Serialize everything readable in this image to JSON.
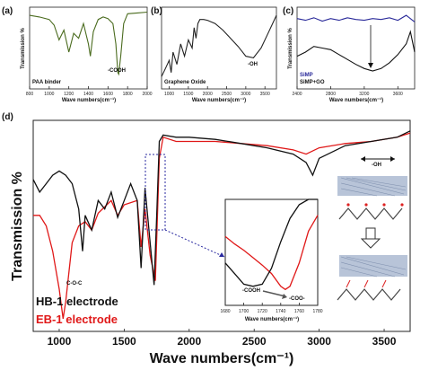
{
  "chart_data": [
    {
      "panel": "(a)",
      "type": "line",
      "xlabel": "Wave numbers(cm⁻¹)",
      "ylabel": "Transmission %",
      "xlim": [
        800,
        2000
      ],
      "xticks": [
        "800",
        "1000",
        "1200",
        "1400",
        "1600",
        "1800",
        "2000"
      ],
      "legend": "PAA binder",
      "annotations": [
        "-COOH"
      ],
      "series": [
        {
          "color": "#4a6b1e",
          "x": [
            800,
            900,
            1000,
            1050,
            1100,
            1150,
            1200,
            1250,
            1300,
            1350,
            1400,
            1420,
            1450,
            1500,
            1550,
            1600,
            1650,
            1680,
            1700,
            1710,
            1730,
            1760,
            1800,
            1900,
            2000
          ],
          "y": [
            0.9,
            0.88,
            0.85,
            0.78,
            0.6,
            0.72,
            0.45,
            0.68,
            0.62,
            0.8,
            0.55,
            0.4,
            0.7,
            0.85,
            0.88,
            0.86,
            0.8,
            0.55,
            0.2,
            0.18,
            0.4,
            0.8,
            0.92,
            0.93,
            0.94
          ]
        }
      ]
    },
    {
      "panel": "(b)",
      "type": "line",
      "xlabel": "Wave numbers(cm⁻¹)",
      "ylabel": "",
      "xlim": [
        800,
        3800
      ],
      "xticks": [
        "1000",
        "1500",
        "2000",
        "2500",
        "3000",
        "3500"
      ],
      "legend": "Graphene Oxide",
      "annotations": [
        "-OH"
      ],
      "series": [
        {
          "color": "#222222",
          "x": [
            800,
            900,
            1000,
            1050,
            1100,
            1200,
            1300,
            1400,
            1500,
            1600,
            1650,
            1700,
            1750,
            1800,
            1900,
            2000,
            2200,
            2400,
            2600,
            2800,
            3000,
            3200,
            3400,
            3600,
            3800
          ],
          "y": [
            0.15,
            0.25,
            0.35,
            0.2,
            0.45,
            0.3,
            0.55,
            0.4,
            0.6,
            0.5,
            0.75,
            0.62,
            0.8,
            0.85,
            0.85,
            0.84,
            0.8,
            0.72,
            0.62,
            0.52,
            0.4,
            0.38,
            0.5,
            0.7,
            0.9
          ]
        }
      ]
    },
    {
      "panel": "(c)",
      "type": "line",
      "xlabel": "Wave numbers(cm⁻¹)",
      "ylabel": "Transmission %",
      "xlim": [
        2400,
        3800
      ],
      "xticks": [
        "2400",
        "2800",
        "3200",
        "3600"
      ],
      "series": [
        {
          "name": "SiMP",
          "color": "#2a2a9a",
          "x": [
            2400,
            2500,
            2600,
            2700,
            2800,
            2900,
            3000,
            3100,
            3200,
            3300,
            3400,
            3500,
            3600,
            3700,
            3800
          ],
          "y": [
            0.86,
            0.84,
            0.87,
            0.83,
            0.86,
            0.84,
            0.87,
            0.85,
            0.84,
            0.86,
            0.85,
            0.87,
            0.84,
            0.9,
            0.82
          ]
        },
        {
          "name": "SiMP+GO",
          "color": "#111111",
          "x": [
            2400,
            2500,
            2600,
            2700,
            2800,
            2900,
            3000,
            3100,
            3200,
            3300,
            3400,
            3500,
            3600,
            3700,
            3750,
            3800
          ],
          "y": [
            0.4,
            0.45,
            0.52,
            0.5,
            0.48,
            0.42,
            0.36,
            0.3,
            0.25,
            0.22,
            0.25,
            0.32,
            0.42,
            0.55,
            0.7,
            0.45
          ]
        }
      ]
    },
    {
      "panel": "(d)",
      "type": "line",
      "xlabel": "Wave numbers(cm⁻¹)",
      "ylabel": "Transmission %",
      "xlim": [
        800,
        3700
      ],
      "xticks": [
        "1000",
        "1500",
        "2000",
        "2500",
        "3000",
        "3500"
      ],
      "annotations": [
        "C-O-C",
        "-OH"
      ],
      "series": [
        {
          "name": "HB-1 electrode",
          "color": "#111111",
          "x": [
            800,
            850,
            900,
            950,
            1000,
            1050,
            1100,
            1150,
            1180,
            1200,
            1250,
            1300,
            1350,
            1400,
            1450,
            1500,
            1550,
            1600,
            1630,
            1660,
            1700,
            1730,
            1750,
            1770,
            1800,
            1900,
            2000,
            2200,
            2400,
            2600,
            2800,
            2900,
            2950,
            3000,
            3200,
            3400,
            3600,
            3700
          ],
          "y": [
            0.72,
            0.66,
            0.7,
            0.74,
            0.76,
            0.74,
            0.7,
            0.58,
            0.38,
            0.55,
            0.48,
            0.62,
            0.58,
            0.66,
            0.54,
            0.62,
            0.7,
            0.62,
            0.3,
            0.68,
            0.42,
            0.22,
            0.55,
            0.9,
            0.93,
            0.92,
            0.92,
            0.91,
            0.89,
            0.87,
            0.84,
            0.8,
            0.74,
            0.82,
            0.88,
            0.9,
            0.92,
            0.95
          ]
        },
        {
          "name": "EB-1 electrode",
          "color": "#e01818",
          "x": [
            800,
            850,
            900,
            950,
            1000,
            1030,
            1050,
            1100,
            1150,
            1200,
            1250,
            1300,
            1400,
            1450,
            1500,
            1600,
            1630,
            1660,
            1700,
            1740,
            1770,
            1800,
            1900,
            2000,
            2200,
            2400,
            2600,
            2800,
            2900,
            3000,
            3200,
            3400,
            3600,
            3700
          ],
          "y": [
            0.55,
            0.55,
            0.5,
            0.38,
            0.2,
            0.06,
            0.14,
            0.42,
            0.5,
            0.52,
            0.48,
            0.56,
            0.62,
            0.55,
            0.6,
            0.62,
            0.4,
            0.58,
            0.36,
            0.24,
            0.82,
            0.92,
            0.9,
            0.9,
            0.9,
            0.89,
            0.88,
            0.86,
            0.84,
            0.87,
            0.89,
            0.9,
            0.92,
            0.94
          ]
        }
      ]
    },
    {
      "panel": "inset",
      "type": "line",
      "xlabel": "Wave numbers(cm⁻¹)",
      "xlim": [
        1680,
        1780
      ],
      "xticks": [
        "1680",
        "1700",
        "1720",
        "1740",
        "1760",
        "1780"
      ],
      "annotations": [
        "-COOH",
        "-COO-"
      ],
      "series": [
        {
          "name": "HB-1 electrode",
          "color": "#111111",
          "x": [
            1680,
            1690,
            1700,
            1710,
            1720,
            1730,
            1740,
            1750,
            1760,
            1770,
            1780
          ],
          "y": [
            0.4,
            0.3,
            0.2,
            0.18,
            0.2,
            0.35,
            0.6,
            0.82,
            0.95,
            1.0,
            1.0
          ]
        },
        {
          "name": "EB-1 electrode",
          "color": "#e01818",
          "x": [
            1680,
            1690,
            1700,
            1710,
            1720,
            1730,
            1740,
            1745,
            1750,
            1760,
            1770,
            1780
          ],
          "y": [
            0.65,
            0.58,
            0.52,
            0.45,
            0.38,
            0.3,
            0.18,
            0.15,
            0.18,
            0.4,
            0.7,
            0.85
          ]
        }
      ]
    }
  ]
}
